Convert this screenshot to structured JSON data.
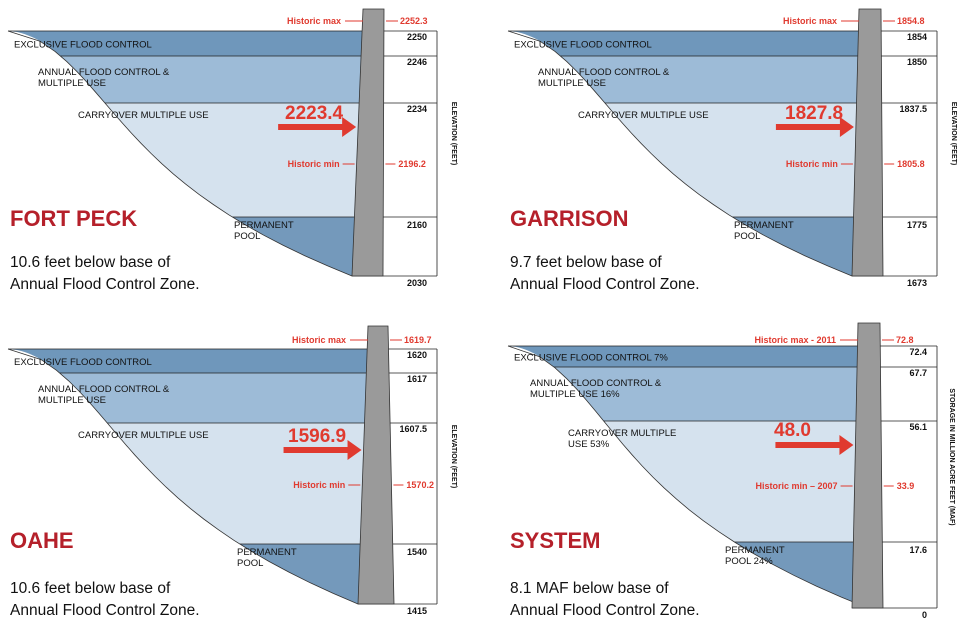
{
  "colors": {
    "exclusive": "#6f97bb",
    "annual": "#9dbbd7",
    "carryover": "#d5e2ee",
    "permanent": "#7499bb",
    "dam": "#9a9a9a",
    "red": "#e03a2f",
    "name": "#b5202a"
  },
  "panels": [
    {
      "name": "FORT PECK",
      "note": [
        "10.6 feet below base of",
        "Annual Flood Control Zone."
      ],
      "axis_label": "ELEVATION (FEET)",
      "zones": {
        "exclusive": [
          "EXCLUSIVE FLOOD CONTROL"
        ],
        "annual": [
          "ANNUAL FLOOD CONTROL &",
          "MULTIPLE USE"
        ],
        "carryover": [
          "CARRYOVER MULTIPLE USE"
        ],
        "permanent": [
          "PERMANENT",
          "POOL"
        ]
      },
      "elevations": {
        "top": "2250",
        "annual": "2246",
        "carryover": "2234",
        "permanent": "2160",
        "base": "2030"
      },
      "historic_max": {
        "label": "Historic max",
        "value": "2252.3"
      },
      "historic_min": {
        "label": "Historic min",
        "value": "2196.2"
      },
      "current": "2223.4"
    },
    {
      "name": "GARRISON",
      "note": [
        "9.7 feet below base of",
        "Annual Flood Control Zone."
      ],
      "axis_label": "ELEVATION (FEET)",
      "zones": {
        "exclusive": [
          "EXCLUSIVE FLOOD CONTROL"
        ],
        "annual": [
          "ANNUAL FLOOD CONTROL &",
          "MULTIPLE USE"
        ],
        "carryover": [
          "CARRYOVER MULTIPLE USE"
        ],
        "permanent": [
          "PERMANENT",
          "POOL"
        ]
      },
      "elevations": {
        "top": "1854",
        "annual": "1850",
        "carryover": "1837.5",
        "permanent": "1775",
        "base": "1673"
      },
      "historic_max": {
        "label": "Historic max",
        "value": "1854.8"
      },
      "historic_min": {
        "label": "Historic min",
        "value": "1805.8"
      },
      "current": "1827.8"
    },
    {
      "name": "OAHE",
      "note": [
        "10.6 feet below base of",
        "Annual Flood Control Zone."
      ],
      "axis_label": "ELEVATION (FEET)",
      "zones": {
        "exclusive": [
          "EXCLUSIVE FLOOD CONTROL"
        ],
        "annual": [
          "ANNUAL FLOOD CONTROL &",
          "MULTIPLE USE"
        ],
        "carryover": [
          "CARRYOVER MULTIPLE USE"
        ],
        "permanent": [
          "PERMANENT",
          "POOL"
        ]
      },
      "elevations": {
        "top": "1620",
        "annual": "1617",
        "carryover": "1607.5",
        "permanent": "1540",
        "base": "1415"
      },
      "historic_max": {
        "label": "Historic max",
        "value": "1619.7"
      },
      "historic_min": {
        "label": "Historic min",
        "value": "1570.2"
      },
      "current": "1596.9"
    },
    {
      "name": "SYSTEM",
      "note": [
        "8.1 MAF below base of",
        "Annual Flood Control Zone."
      ],
      "axis_label": "STORAGE IN MILLION ACRE FEET (MAF)",
      "zones": {
        "exclusive": [
          "EXCLUSIVE FLOOD CONTROL 7%"
        ],
        "annual": [
          "ANNUAL FLOOD CONTROL &",
          "MULTIPLE USE 16%"
        ],
        "carryover": [
          "CARRYOVER MULTIPLE",
          "USE 53%"
        ],
        "permanent": [
          "PERMANENT",
          "POOL 24%"
        ]
      },
      "elevations": {
        "top": "72.4",
        "annual": "67.7",
        "carryover": "56.1",
        "permanent": "17.6",
        "base": "0"
      },
      "historic_max": {
        "label": "Historic max -  2011",
        "value": "72.8"
      },
      "historic_min": {
        "label": "Historic min – 2007",
        "value": "33.9"
      },
      "current": "48.0"
    }
  ]
}
